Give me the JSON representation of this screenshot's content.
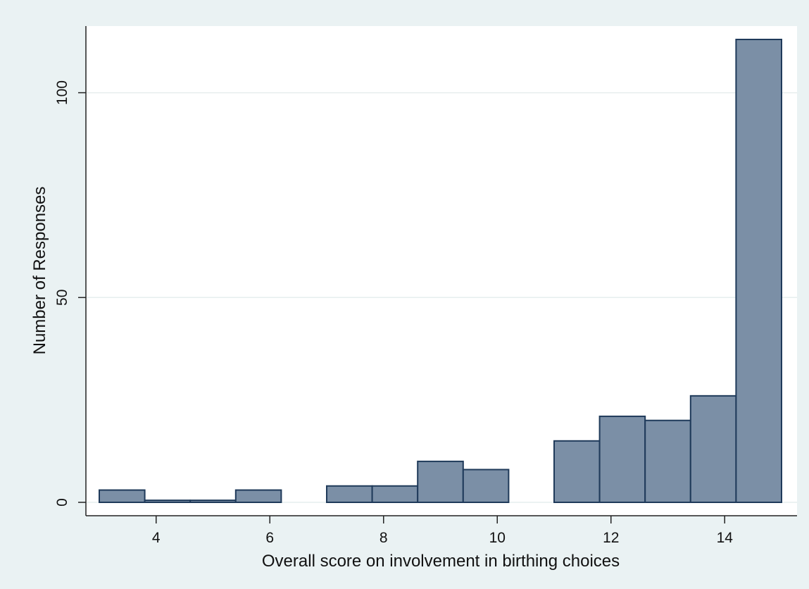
{
  "chart_data": {
    "type": "bar",
    "title": "",
    "xlabel": "Overall score on involvement in birthing choices",
    "ylabel": "Number of Responses",
    "xlim": [
      3,
      15
    ],
    "ylim": [
      0,
      113
    ],
    "x_ticks": [
      4,
      6,
      8,
      10,
      12,
      14
    ],
    "y_ticks": [
      0,
      50,
      100
    ],
    "grid": true,
    "bins": [
      {
        "start": 3.0,
        "end": 3.8,
        "count": 3
      },
      {
        "start": 3.8,
        "end": 4.6,
        "count": 0.5
      },
      {
        "start": 4.6,
        "end": 5.4,
        "count": 0.5
      },
      {
        "start": 5.4,
        "end": 6.2,
        "count": 3
      },
      {
        "start": 7.0,
        "end": 7.8,
        "count": 4
      },
      {
        "start": 7.8,
        "end": 8.6,
        "count": 4
      },
      {
        "start": 8.6,
        "end": 9.4,
        "count": 10
      },
      {
        "start": 9.4,
        "end": 10.2,
        "count": 8
      },
      {
        "start": 11.0,
        "end": 11.8,
        "count": 15
      },
      {
        "start": 11.8,
        "end": 12.6,
        "count": 21
      },
      {
        "start": 12.6,
        "end": 13.4,
        "count": 20
      },
      {
        "start": 13.4,
        "end": 14.2,
        "count": 26
      },
      {
        "start": 14.2,
        "end": 15.0,
        "count": 113
      }
    ],
    "colors": {
      "bar_fill": "#7b8fa6",
      "bar_stroke": "#1f3a5a",
      "plot_background": "#ffffff",
      "outer_background": "#eaf2f3",
      "grid": "#e6eeee"
    }
  }
}
